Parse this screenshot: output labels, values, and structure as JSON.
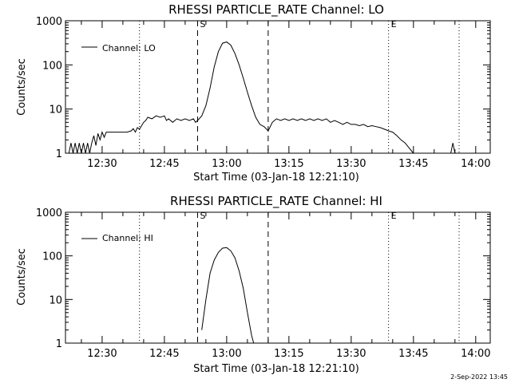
{
  "footer_timestamp": "2-Sep-2022 13:45",
  "chart_data": [
    {
      "type": "line",
      "title": "RHESSI PARTICLE_RATE Channel: LO",
      "xlabel": "Start Time (03-Jan-18 12:21:10)",
      "ylabel": "Counts/sec",
      "y_scale": "log",
      "ylim": [
        1,
        1000
      ],
      "xlim": [
        "12:21:10",
        "14:03:30"
      ],
      "x_ticks": [
        "12:30",
        "12:45",
        "13:00",
        "13:15",
        "13:30",
        "13:45",
        "14:00"
      ],
      "y_ticks": [
        "1",
        "10",
        "100",
        "1000"
      ],
      "legend": {
        "position": "top-left",
        "entries": [
          "Channel: LO"
        ]
      },
      "markers": [
        {
          "time": "12:39",
          "style": "dotted",
          "label": ""
        },
        {
          "time": "12:53",
          "style": "dashed",
          "label": "S"
        },
        {
          "time": "13:10",
          "style": "dashed",
          "label": ""
        },
        {
          "time": "13:39",
          "style": "dotted",
          "label": "E"
        },
        {
          "time": "13:56",
          "style": "dotted",
          "label": ""
        }
      ],
      "series": [
        {
          "name": "Channel: LO",
          "points": [
            [
              "12:22:00",
              1
            ],
            [
              "12:22:30",
              1.7
            ],
            [
              "12:23:00",
              1
            ],
            [
              "12:23:30",
              1.7
            ],
            [
              "12:24:00",
              1
            ],
            [
              "12:24:30",
              1.7
            ],
            [
              "12:25:00",
              1
            ],
            [
              "12:25:30",
              1.7
            ],
            [
              "12:26:00",
              1
            ],
            [
              "12:26:30",
              1.7
            ],
            [
              "12:27:00",
              1
            ],
            [
              "12:27:30",
              1.7
            ],
            [
              "12:28:00",
              2.5
            ],
            [
              "12:28:30",
              1.5
            ],
            [
              "12:29:00",
              2.8
            ],
            [
              "12:29:30",
              2
            ],
            [
              "12:30:00",
              3
            ],
            [
              "12:30:30",
              2.3
            ],
            [
              "12:31:00",
              3
            ],
            [
              "12:32:00",
              3
            ],
            [
              "12:33:00",
              3
            ],
            [
              "12:34:00",
              3
            ],
            [
              "12:35:00",
              3
            ],
            [
              "12:36:00",
              3
            ],
            [
              "12:37:00",
              3.2
            ],
            [
              "12:37:30",
              3.6
            ],
            [
              "12:38:00",
              3
            ],
            [
              "12:38:30",
              3.8
            ],
            [
              "12:39:00",
              3.5
            ],
            [
              "12:40:00",
              5
            ],
            [
              "12:40:30",
              5.5
            ],
            [
              "12:41:00",
              6.5
            ],
            [
              "12:42:00",
              6
            ],
            [
              "12:43:00",
              7
            ],
            [
              "12:44:00",
              6.5
            ],
            [
              "12:45:00",
              7
            ],
            [
              "12:45:30",
              5.5
            ],
            [
              "12:46:00",
              6
            ],
            [
              "12:47:00",
              5
            ],
            [
              "12:48:00",
              6
            ],
            [
              "12:49:00",
              5.5
            ],
            [
              "12:50:00",
              6
            ],
            [
              "12:51:00",
              5.5
            ],
            [
              "12:52:00",
              6
            ],
            [
              "12:52:30",
              5
            ],
            [
              "12:53:00",
              5.5
            ],
            [
              "12:54:00",
              7
            ],
            [
              "12:55:00",
              12
            ],
            [
              "12:56:00",
              30
            ],
            [
              "12:57:00",
              90
            ],
            [
              "12:58:00",
              200
            ],
            [
              "12:59:00",
              310
            ],
            [
              "13:00:00",
              330
            ],
            [
              "13:01:00",
              280
            ],
            [
              "13:02:00",
              180
            ],
            [
              "13:03:00",
              100
            ],
            [
              "13:04:00",
              50
            ],
            [
              "13:05:00",
              24
            ],
            [
              "13:06:00",
              12
            ],
            [
              "13:07:00",
              6.5
            ],
            [
              "13:08:00",
              4.5
            ],
            [
              "13:09:00",
              4
            ],
            [
              "13:10:00",
              3.2
            ],
            [
              "13:11:00",
              5
            ],
            [
              "13:12:00",
              6
            ],
            [
              "13:13:00",
              5.5
            ],
            [
              "13:14:00",
              6
            ],
            [
              "13:15:00",
              5.5
            ],
            [
              "13:16:00",
              6
            ],
            [
              "13:17:00",
              5.5
            ],
            [
              "13:18:00",
              6
            ],
            [
              "13:19:00",
              5.5
            ],
            [
              "13:20:00",
              6
            ],
            [
              "13:21:00",
              5.5
            ],
            [
              "13:22:00",
              6
            ],
            [
              "13:23:00",
              5.5
            ],
            [
              "13:24:00",
              6
            ],
            [
              "13:25:00",
              5
            ],
            [
              "13:26:00",
              5.5
            ],
            [
              "13:27:00",
              5
            ],
            [
              "13:28:00",
              4.5
            ],
            [
              "13:29:00",
              5
            ],
            [
              "13:30:00",
              4.5
            ],
            [
              "13:31:00",
              4.5
            ],
            [
              "13:32:00",
              4.2
            ],
            [
              "13:33:00",
              4.5
            ],
            [
              "13:34:00",
              4
            ],
            [
              "13:35:00",
              4.2
            ],
            [
              "13:36:00",
              4
            ],
            [
              "13:37:00",
              3.8
            ],
            [
              "13:38:00",
              3.5
            ],
            [
              "13:39:00",
              3.2
            ],
            [
              "13:40:00",
              3
            ],
            [
              "13:41:00",
              2.5
            ],
            [
              "13:42:00",
              2
            ],
            [
              "13:43:00",
              1.7
            ],
            [
              "13:44:00",
              1.3
            ],
            [
              "13:45:00",
              1
            ],
            [
              "13:54:00",
              1
            ],
            [
              "13:54:30",
              1.7
            ],
            [
              "13:55:00",
              1
            ]
          ]
        }
      ]
    },
    {
      "type": "line",
      "title": "RHESSI PARTICLE_RATE Channel: HI",
      "xlabel": "Start Time (03-Jan-18 12:21:10)",
      "ylabel": "Counts/sec",
      "y_scale": "log",
      "ylim": [
        1,
        1000
      ],
      "xlim": [
        "12:21:10",
        "14:03:30"
      ],
      "x_ticks": [
        "12:30",
        "12:45",
        "13:00",
        "13:15",
        "13:30",
        "13:45",
        "14:00"
      ],
      "y_ticks": [
        "1",
        "10",
        "100",
        "1000"
      ],
      "legend": {
        "position": "top-left",
        "entries": [
          "Channel: HI"
        ]
      },
      "markers": [
        {
          "time": "12:39",
          "style": "dotted",
          "label": ""
        },
        {
          "time": "12:53",
          "style": "dashed",
          "label": "S"
        },
        {
          "time": "13:10",
          "style": "dashed",
          "label": ""
        },
        {
          "time": "13:39",
          "style": "dotted",
          "label": "E"
        },
        {
          "time": "13:56",
          "style": "dotted",
          "label": ""
        }
      ],
      "series": [
        {
          "name": "Channel: HI",
          "points": [
            [
              "12:54:00",
              2
            ],
            [
              "12:55:00",
              10
            ],
            [
              "12:56:00",
              40
            ],
            [
              "12:57:00",
              80
            ],
            [
              "12:58:00",
              120
            ],
            [
              "12:59:00",
              150
            ],
            [
              "13:00:00",
              155
            ],
            [
              "13:01:00",
              130
            ],
            [
              "13:02:00",
              90
            ],
            [
              "13:03:00",
              45
            ],
            [
              "13:04:00",
              18
            ],
            [
              "13:05:00",
              5
            ],
            [
              "13:06:00",
              1.5
            ],
            [
              "13:06:30",
              1
            ]
          ]
        }
      ]
    }
  ]
}
